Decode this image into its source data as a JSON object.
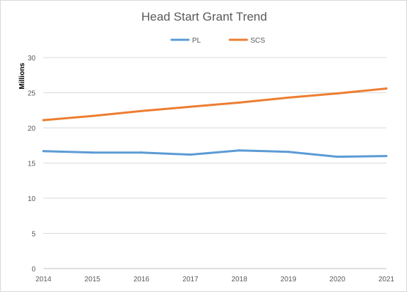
{
  "chart_data": {
    "type": "line",
    "title": "Head Start Grant Trend",
    "xlabel": "",
    "ylabel": "Millions",
    "x": [
      "2014",
      "2015",
      "2016",
      "2017",
      "2018",
      "2019",
      "2020",
      "2021"
    ],
    "ylim": [
      0,
      30
    ],
    "yticks": [
      0,
      5,
      10,
      15,
      20,
      25,
      30
    ],
    "grid": true,
    "legend_position": "top",
    "series": [
      {
        "name": "PL",
        "color": "#5b9bd5",
        "values": [
          16.7,
          16.5,
          16.5,
          16.2,
          16.8,
          16.6,
          15.9,
          16.0
        ]
      },
      {
        "name": "SCS",
        "color": "#ed7d31",
        "values": [
          21.1,
          21.7,
          22.4,
          23.0,
          23.6,
          24.3,
          24.9,
          25.6
        ]
      }
    ]
  }
}
